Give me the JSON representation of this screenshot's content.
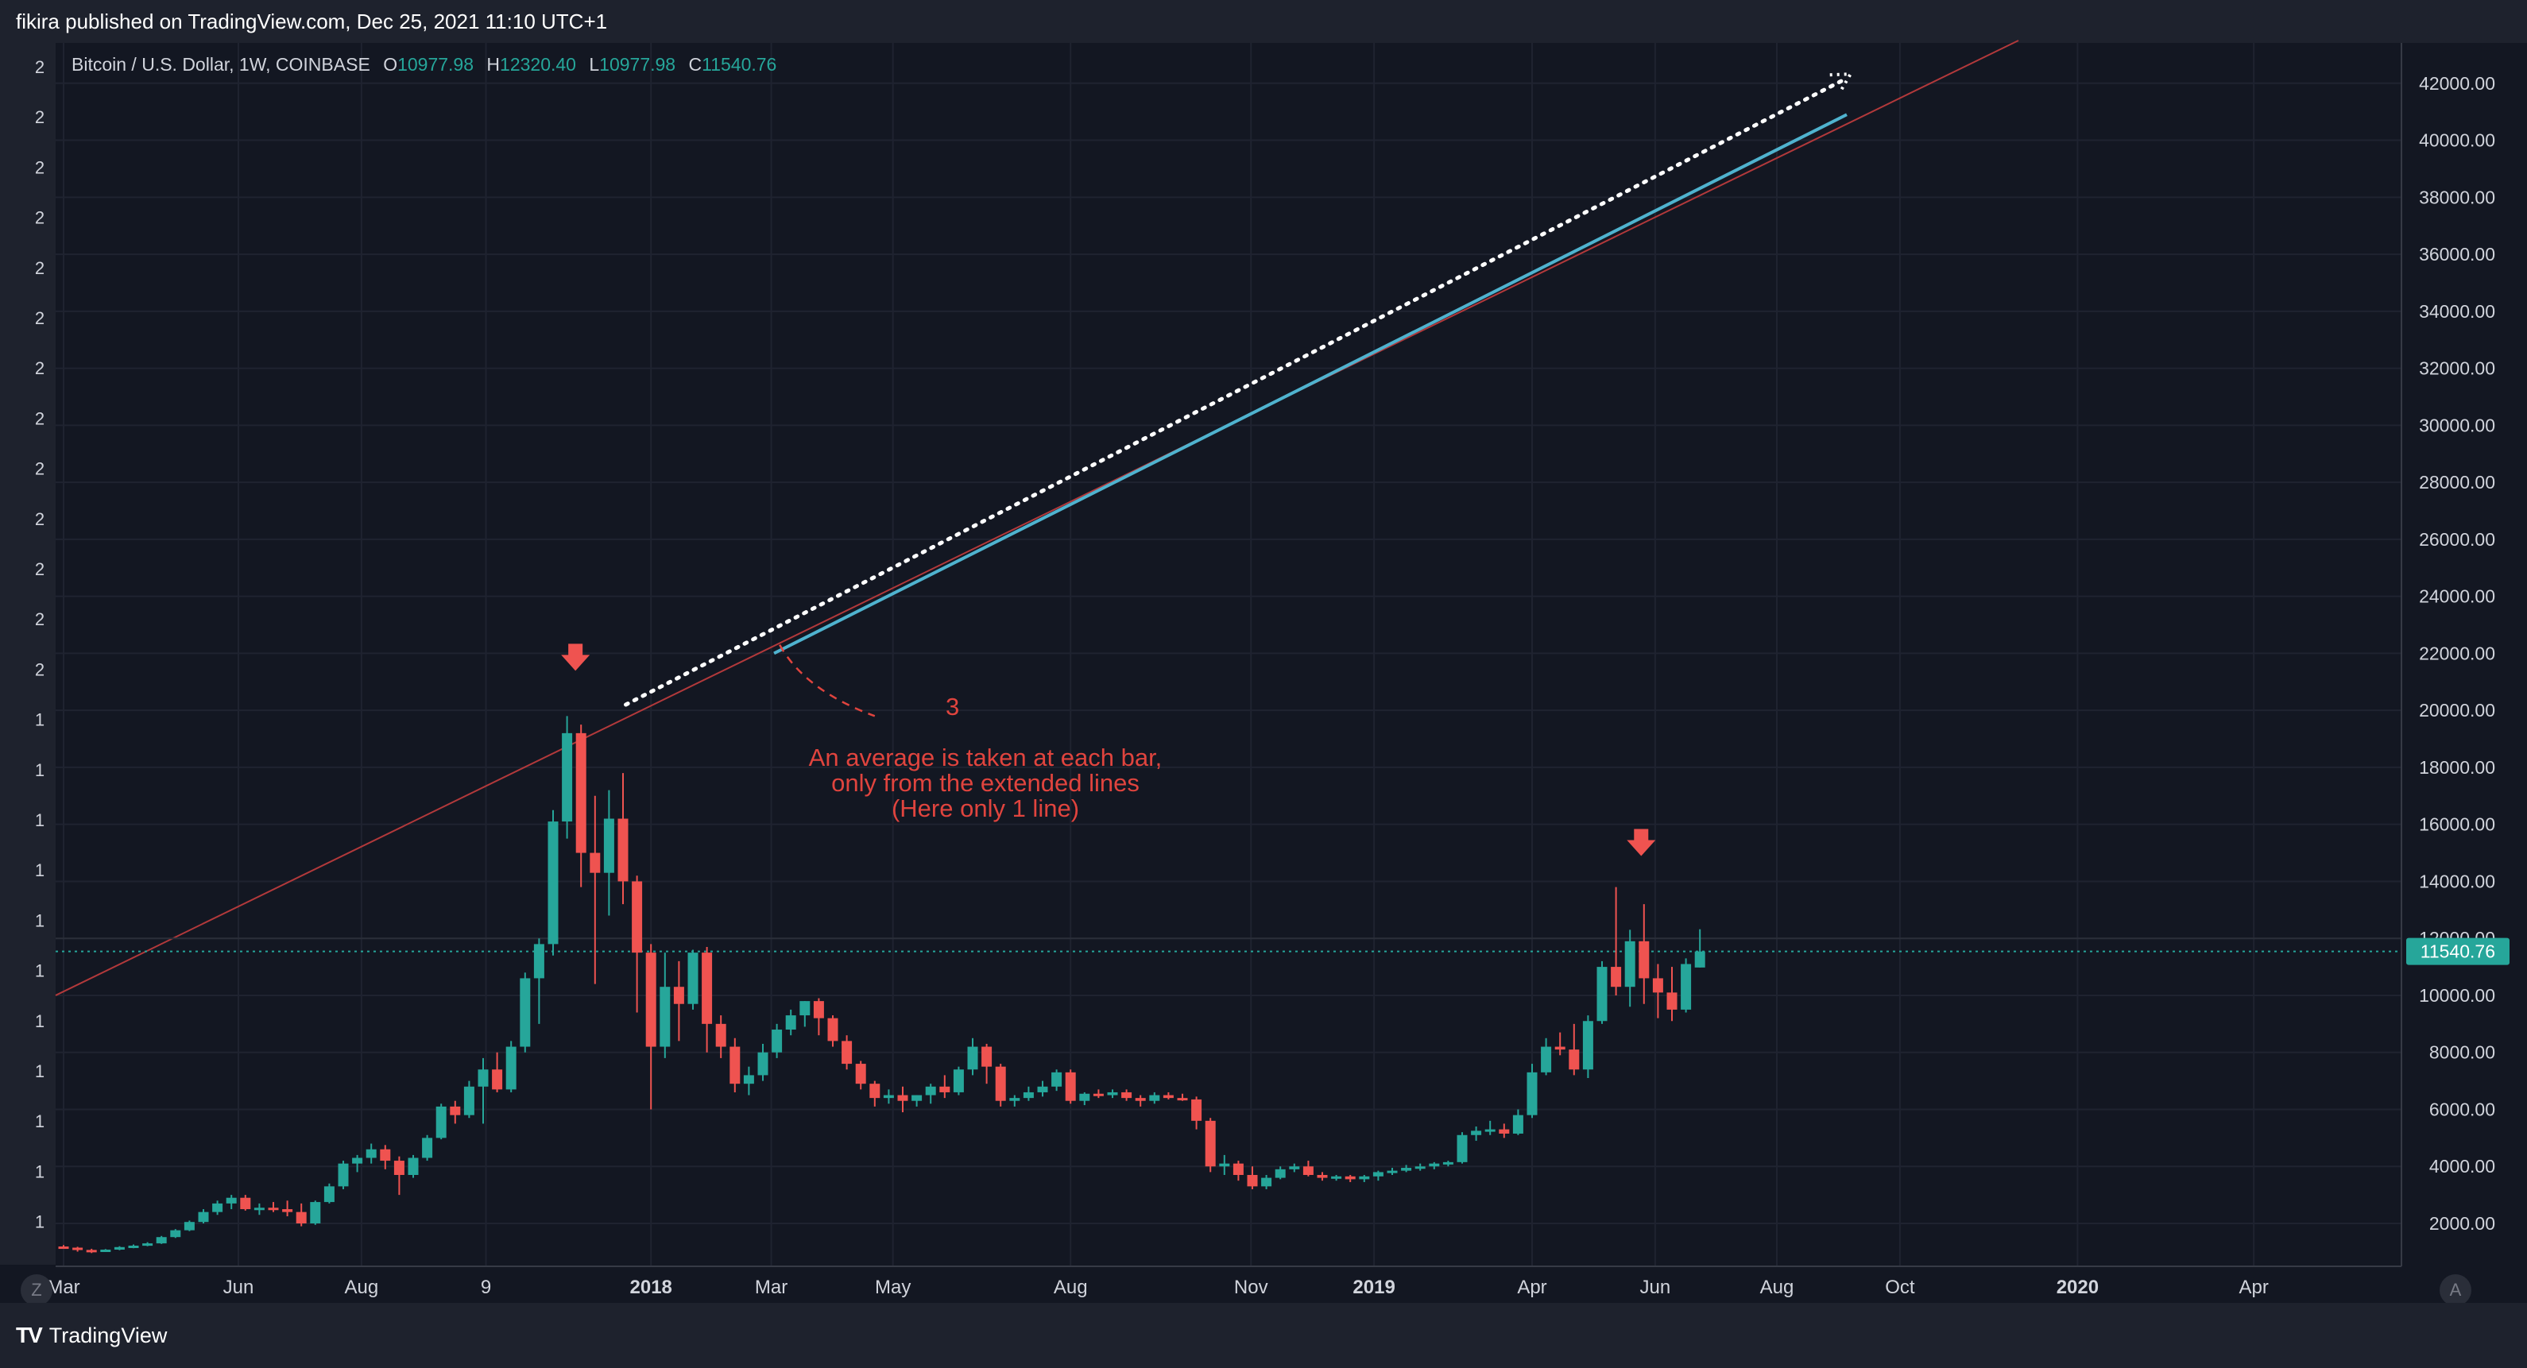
{
  "header": {
    "publish_info": "fikira published on TradingView.com, Dec 25, 2021 11:10 UTC+1"
  },
  "legend": {
    "symbol": "Bitcoin / U.S. Dollar, 1W, COINBASE",
    "open_label": "O",
    "open": "10977.98",
    "high_label": "H",
    "high": "12320.40",
    "low_label": "L",
    "low": "10977.98",
    "close_label": "C",
    "close": "11540.76"
  },
  "annotation": {
    "number": "3",
    "lines": [
      "An average is taken at each bar,",
      "only from the extended lines",
      "(Here only 1 line)"
    ]
  },
  "footer": {
    "brand": "TradingView",
    "left_button": "Z",
    "right_button": "A"
  },
  "left_scale": [
    "2",
    "2",
    "2",
    "2",
    "2",
    "2",
    "2",
    "2",
    "2",
    "2",
    "2",
    "2",
    "2",
    "1",
    "1",
    "1",
    "1",
    "1",
    "1",
    "1",
    "1",
    "1",
    "1",
    "1"
  ],
  "colors": {
    "up": "#26a69a",
    "down": "#ef5350",
    "trendline": "#4fb3cf",
    "channel": "#b2393b",
    "annotation": "#e0443e",
    "background": "#131722"
  },
  "chart_data": {
    "type": "candlestick",
    "title": "Bitcoin / U.S. Dollar, 1W, COINBASE",
    "ylim": [
      0,
      43000
    ],
    "y_ticks": [
      2000,
      4000,
      6000,
      8000,
      10000,
      12000,
      14000,
      16000,
      18000,
      20000,
      22000,
      24000,
      26000,
      28000,
      30000,
      32000,
      34000,
      36000,
      38000,
      40000,
      42000
    ],
    "x_ticks": [
      {
        "label": "Mar",
        "t": 0
      },
      {
        "label": "Jun",
        "t": 12.5
      },
      {
        "label": "Aug",
        "t": 21.3
      },
      {
        "label": "9",
        "t": 30.2
      },
      {
        "label": "2018",
        "t": 42
      },
      {
        "label": "Mar",
        "t": 50.6
      },
      {
        "label": "May",
        "t": 59.3
      },
      {
        "label": "Aug",
        "t": 72
      },
      {
        "label": "Nov",
        "t": 84.9
      },
      {
        "label": "2019",
        "t": 93.7
      },
      {
        "label": "Apr",
        "t": 105
      },
      {
        "label": "Jun",
        "t": 113.8
      },
      {
        "label": "Aug",
        "t": 122.5
      },
      {
        "label": "Oct",
        "t": 131.3
      },
      {
        "label": "2020",
        "t": 144
      },
      {
        "label": "Apr",
        "t": 156.6
      }
    ],
    "last_price": 11540.76,
    "candles": [
      [
        1190,
        1240,
        1120,
        1150
      ],
      [
        1150,
        1180,
        1010,
        1070
      ],
      [
        1070,
        1110,
        960,
        1040
      ],
      [
        1040,
        1100,
        1010,
        1080
      ],
      [
        1080,
        1200,
        1060,
        1170
      ],
      [
        1170,
        1260,
        1130,
        1220
      ],
      [
        1220,
        1340,
        1200,
        1300
      ],
      [
        1300,
        1560,
        1280,
        1520
      ],
      [
        1520,
        1800,
        1490,
        1760
      ],
      [
        1760,
        2100,
        1730,
        2050
      ],
      [
        2050,
        2500,
        2000,
        2400
      ],
      [
        2400,
        2800,
        2300,
        2700
      ],
      [
        2700,
        3000,
        2500,
        2900
      ],
      [
        2900,
        3000,
        2450,
        2500
      ],
      [
        2500,
        2700,
        2300,
        2550
      ],
      [
        2550,
        2750,
        2400,
        2500
      ],
      [
        2500,
        2800,
        2250,
        2400
      ],
      [
        2400,
        2700,
        1900,
        2000
      ],
      [
        2000,
        2800,
        1950,
        2750
      ],
      [
        2750,
        3400,
        2700,
        3300
      ],
      [
        3300,
        4200,
        3200,
        4100
      ],
      [
        4100,
        4400,
        3800,
        4300
      ],
      [
        4300,
        4800,
        4100,
        4600
      ],
      [
        4600,
        4750,
        3900,
        4200
      ],
      [
        4200,
        4350,
        3000,
        3700
      ],
      [
        3700,
        4400,
        3600,
        4300
      ],
      [
        4300,
        5100,
        4200,
        5000
      ],
      [
        5000,
        6200,
        4950,
        6100
      ],
      [
        6100,
        6300,
        5500,
        5800
      ],
      [
        5800,
        7000,
        5700,
        6800
      ],
      [
        6800,
        7800,
        5500,
        7400
      ],
      [
        7400,
        8000,
        6600,
        6700
      ],
      [
        6700,
        8400,
        6600,
        8200
      ],
      [
        8200,
        10800,
        8000,
        10600
      ],
      [
        10600,
        12000,
        9000,
        11800
      ],
      [
        11800,
        16500,
        11400,
        16100
      ],
      [
        16100,
        19800,
        15500,
        19200
      ],
      [
        19200,
        19500,
        13800,
        15000
      ],
      [
        15000,
        17000,
        10400,
        14300
      ],
      [
        14300,
        17200,
        12800,
        16200
      ],
      [
        16200,
        17800,
        13200,
        14000
      ],
      [
        14000,
        14200,
        9400,
        11500
      ],
      [
        11500,
        11800,
        6000,
        8200
      ],
      [
        8200,
        11500,
        7800,
        10300
      ],
      [
        10300,
        11200,
        8400,
        9700
      ],
      [
        9700,
        11600,
        9500,
        11500
      ],
      [
        11500,
        11700,
        8000,
        9000
      ],
      [
        9000,
        9300,
        7800,
        8200
      ],
      [
        8200,
        8500,
        6600,
        6900
      ],
      [
        6900,
        7500,
        6500,
        7200
      ],
      [
        7200,
        8300,
        7000,
        8000
      ],
      [
        8000,
        9000,
        7800,
        8800
      ],
      [
        8800,
        9500,
        8600,
        9300
      ],
      [
        9300,
        9800,
        8900,
        9800
      ],
      [
        9800,
        9900,
        8600,
        9200
      ],
      [
        9200,
        9300,
        8200,
        8400
      ],
      [
        8400,
        8600,
        7400,
        7600
      ],
      [
        7600,
        7700,
        6700,
        6900
      ],
      [
        6900,
        7000,
        6100,
        6400
      ],
      [
        6400,
        6700,
        6200,
        6500
      ],
      [
        6500,
        6800,
        5900,
        6300
      ],
      [
        6300,
        6500,
        6100,
        6500
      ],
      [
        6500,
        6900,
        6200,
        6800
      ],
      [
        6800,
        7200,
        6400,
        6600
      ],
      [
        6600,
        7500,
        6500,
        7400
      ],
      [
        7400,
        8500,
        7200,
        8200
      ],
      [
        8200,
        8300,
        6900,
        7500
      ],
      [
        7500,
        7600,
        6100,
        6300
      ],
      [
        6300,
        6500,
        6100,
        6400
      ],
      [
        6400,
        6800,
        6300,
        6600
      ],
      [
        6600,
        7000,
        6450,
        6800
      ],
      [
        6800,
        7400,
        6650,
        7300
      ],
      [
        7300,
        7400,
        6200,
        6300
      ],
      [
        6300,
        6600,
        6150,
        6550
      ],
      [
        6550,
        6700,
        6400,
        6500
      ],
      [
        6500,
        6700,
        6400,
        6600
      ],
      [
        6600,
        6700,
        6300,
        6400
      ],
      [
        6400,
        6500,
        6100,
        6300
      ],
      [
        6300,
        6600,
        6200,
        6500
      ],
      [
        6500,
        6600,
        6350,
        6400
      ],
      [
        6400,
        6550,
        6300,
        6350
      ],
      [
        6350,
        6450,
        5300,
        5600
      ],
      [
        5600,
        5700,
        3800,
        4000
      ],
      [
        4000,
        4400,
        3700,
        4100
      ],
      [
        4100,
        4200,
        3500,
        3700
      ],
      [
        3700,
        4000,
        3200,
        3300
      ],
      [
        3300,
        3700,
        3200,
        3600
      ],
      [
        3600,
        4000,
        3550,
        3900
      ],
      [
        3900,
        4100,
        3800,
        4000
      ],
      [
        4000,
        4200,
        3650,
        3700
      ],
      [
        3700,
        3800,
        3500,
        3600
      ],
      [
        3600,
        3700,
        3500,
        3650
      ],
      [
        3650,
        3700,
        3450,
        3550
      ],
      [
        3550,
        3700,
        3450,
        3650
      ],
      [
        3650,
        3850,
        3500,
        3800
      ],
      [
        3800,
        3950,
        3700,
        3850
      ],
      [
        3850,
        4050,
        3800,
        3950
      ],
      [
        3950,
        4100,
        3850,
        4000
      ],
      [
        4000,
        4150,
        3900,
        4100
      ],
      [
        4100,
        4200,
        4000,
        4150
      ],
      [
        4150,
        5200,
        4100,
        5100
      ],
      [
        5100,
        5400,
        4900,
        5250
      ],
      [
        5250,
        5600,
        5100,
        5300
      ],
      [
        5300,
        5500,
        5000,
        5150
      ],
      [
        5150,
        6000,
        5100,
        5800
      ],
      [
        5800,
        7600,
        5700,
        7300
      ],
      [
        7300,
        8500,
        7200,
        8200
      ],
      [
        8200,
        8700,
        7900,
        8100
      ],
      [
        8100,
        9000,
        7200,
        7400
      ],
      [
        7400,
        9300,
        7100,
        9100
      ],
      [
        9100,
        11200,
        9000,
        11000
      ],
      [
        11000,
        13800,
        10000,
        10300
      ],
      [
        10300,
        12300,
        9600,
        11900
      ],
      [
        11900,
        13200,
        9700,
        10600
      ],
      [
        10600,
        11100,
        9200,
        10100
      ],
      [
        10100,
        11000,
        9100,
        9500
      ],
      [
        9500,
        11300,
        9400,
        11100
      ],
      [
        10978,
        12320,
        10978,
        11541
      ]
    ]
  }
}
